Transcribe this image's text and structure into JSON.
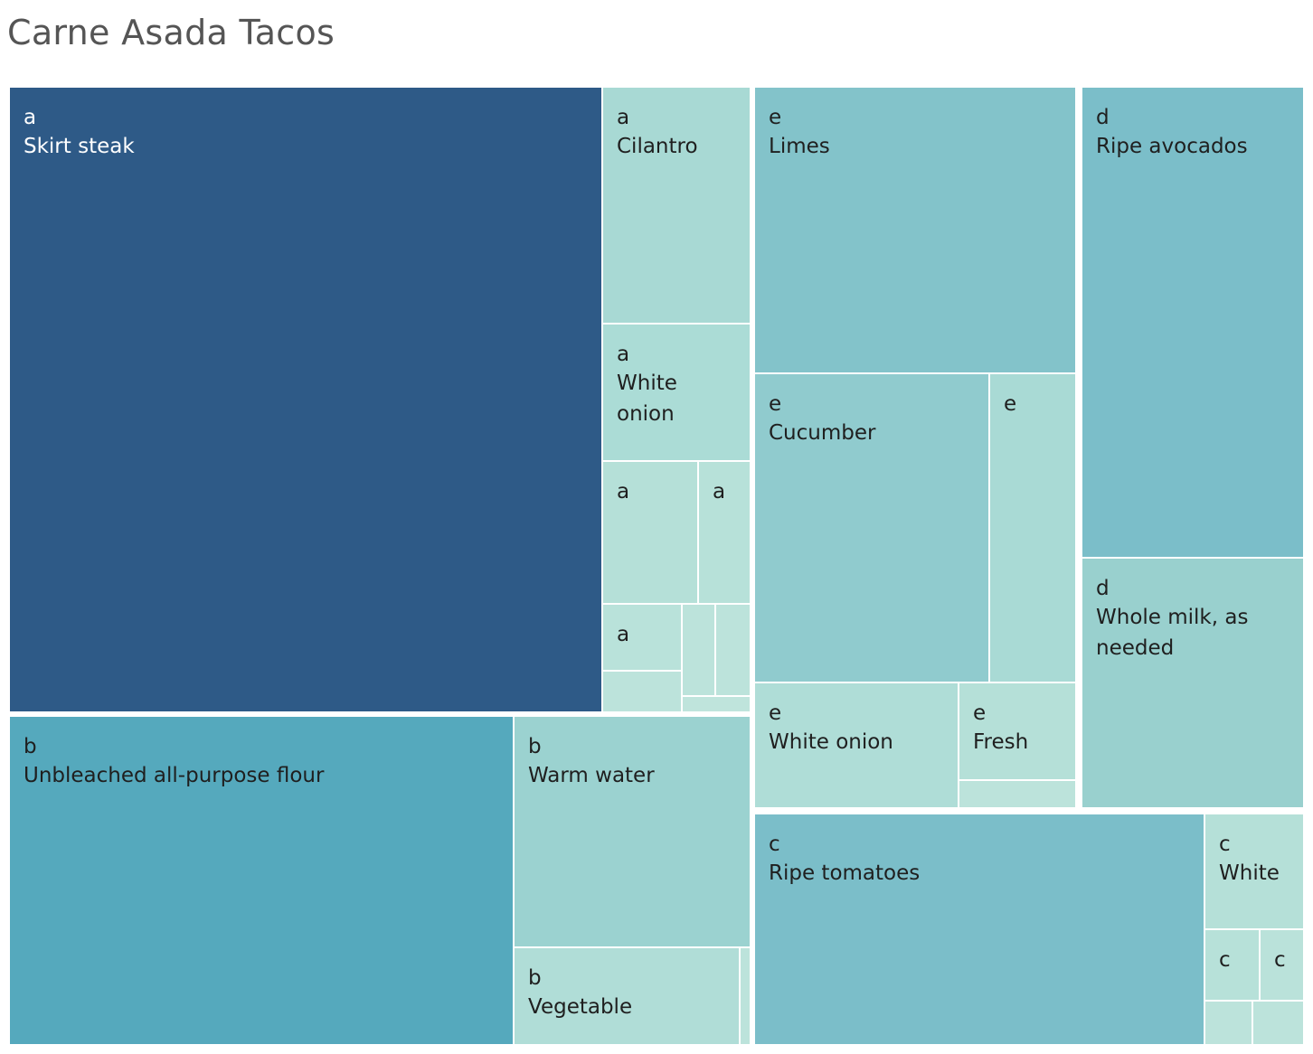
{
  "title": "Carne Asada Tacos",
  "chart_data": {
    "type": "treemap",
    "title": "Carne Asada Tacos",
    "groups": [
      {
        "name": "a",
        "items": [
          {
            "label": "Skirt steak",
            "value": 45200,
            "color": "#2e5a87"
          },
          {
            "label": "Cilantro",
            "value": 4230,
            "color": "#a8d9d4"
          },
          {
            "label": "White onion",
            "value": 2460,
            "color": "#abdcd6"
          },
          {
            "label": "",
            "value": 1660,
            "color": "#b5e0d8"
          },
          {
            "label": "",
            "value": 880,
            "color": "#b7e1d9"
          },
          {
            "label": "",
            "value": 640,
            "color": "#b9e2da"
          },
          {
            "label": "",
            "value": 340,
            "color": "#bce3db"
          },
          {
            "label": "",
            "value": 270,
            "color": "#bce3db"
          },
          {
            "label": "",
            "value": 270,
            "color": "#bce3db"
          },
          {
            "label": "",
            "value": 130,
            "color": "#bfe4dc"
          }
        ]
      },
      {
        "name": "b",
        "items": [
          {
            "label": "Unbleached all-purpose flour",
            "value": 20100,
            "color": "#55a9bd"
          },
          {
            "label": "Warm water",
            "value": 6700,
            "color": "#9bd2d0"
          },
          {
            "label": "Vegetable",
            "value": 2800,
            "color": "#b0ddd7"
          },
          {
            "label": "",
            "value": 120,
            "color": "#bce3db"
          }
        ]
      },
      {
        "name": "c",
        "items": [
          {
            "label": "Ripe tomatoes",
            "value": 12700,
            "color": "#7bbec9"
          },
          {
            "label": "White",
            "value": 1360,
            "color": "#b5e0d8"
          },
          {
            "label": "",
            "value": 760,
            "color": "#b7e1d9"
          },
          {
            "label": "",
            "value": 590,
            "color": "#bae2da"
          },
          {
            "label": "",
            "value": 260,
            "color": "#bce3db"
          },
          {
            "label": "",
            "value": 250,
            "color": "#bce3db"
          }
        ]
      },
      {
        "name": "d",
        "items": [
          {
            "label": "Ripe avocados",
            "value": 12600,
            "color": "#7bbec9"
          },
          {
            "label": "Whole milk, as needed",
            "value": 6800,
            "color": "#99d0ce"
          }
        ]
      },
      {
        "name": "e",
        "items": [
          {
            "label": "Limes",
            "value": 11100,
            "color": "#83c3ca"
          },
          {
            "label": "Cucumber",
            "value": 8700,
            "color": "#90cbce"
          },
          {
            "label": "",
            "value": 3200,
            "color": "#a9dad5"
          },
          {
            "label": "White onion",
            "value": 3000,
            "color": "#afddd7"
          },
          {
            "label": "Fresh",
            "value": 1300,
            "color": "#b5e0d8"
          },
          {
            "label": "",
            "value": 350,
            "color": "#bce3db"
          }
        ]
      }
    ]
  }
}
